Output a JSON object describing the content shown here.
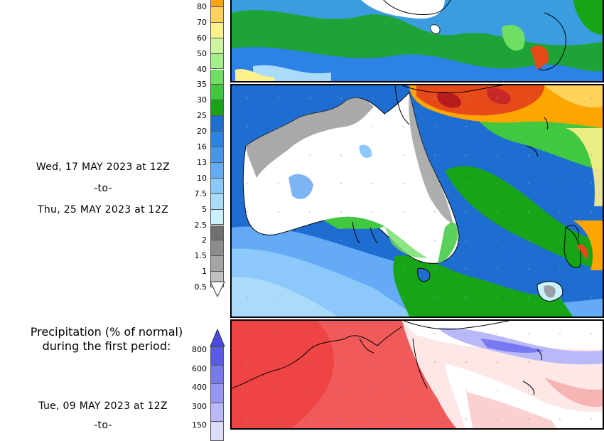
{
  "rain_legend": {
    "ticks": [
      "80",
      "70",
      "60",
      "50",
      "40",
      "35",
      "30",
      "25",
      "20",
      "16",
      "13",
      "10",
      "7.5",
      "5",
      "2.5",
      "2",
      "1.5",
      "1",
      "0.5"
    ],
    "colors": [
      "#ffa500",
      "#ffd35a",
      "#fff08c",
      "#cdf5a0",
      "#a5ee8c",
      "#6fdf64",
      "#40c840",
      "#17a517",
      "#1e6ed2",
      "#2d82e6",
      "#4696f0",
      "#64aaf5",
      "#8cc8fa",
      "#aadcfa",
      "#c8f0ff",
      "#707070",
      "#8c8c8c",
      "#a5a5a5",
      "#c0c0c0"
    ]
  },
  "period": {
    "start": "Wed, 17 MAY 2023 at 12Z",
    "separator": "-to-",
    "end": "Thu, 25 MAY 2023 at 12Z"
  },
  "normal_section": {
    "title_line1": "Precipitation (% of normal)",
    "title_line2": "during the first period:",
    "ticks": [
      "800",
      "600",
      "400",
      "300",
      "150"
    ],
    "colors": [
      "#5a5ae6",
      "#7878f0",
      "#9696f5",
      "#b9b9fa",
      "#dcdcff"
    ],
    "start": "Tue, 09 MAY 2023 at 12Z",
    "separator": "-to-"
  },
  "maps": {
    "top_label": "Precipitation map (previous period, partially visible)",
    "middle_label": "Accumulated precipitation map",
    "bottom_label": "Precipitation percent of normal map"
  }
}
